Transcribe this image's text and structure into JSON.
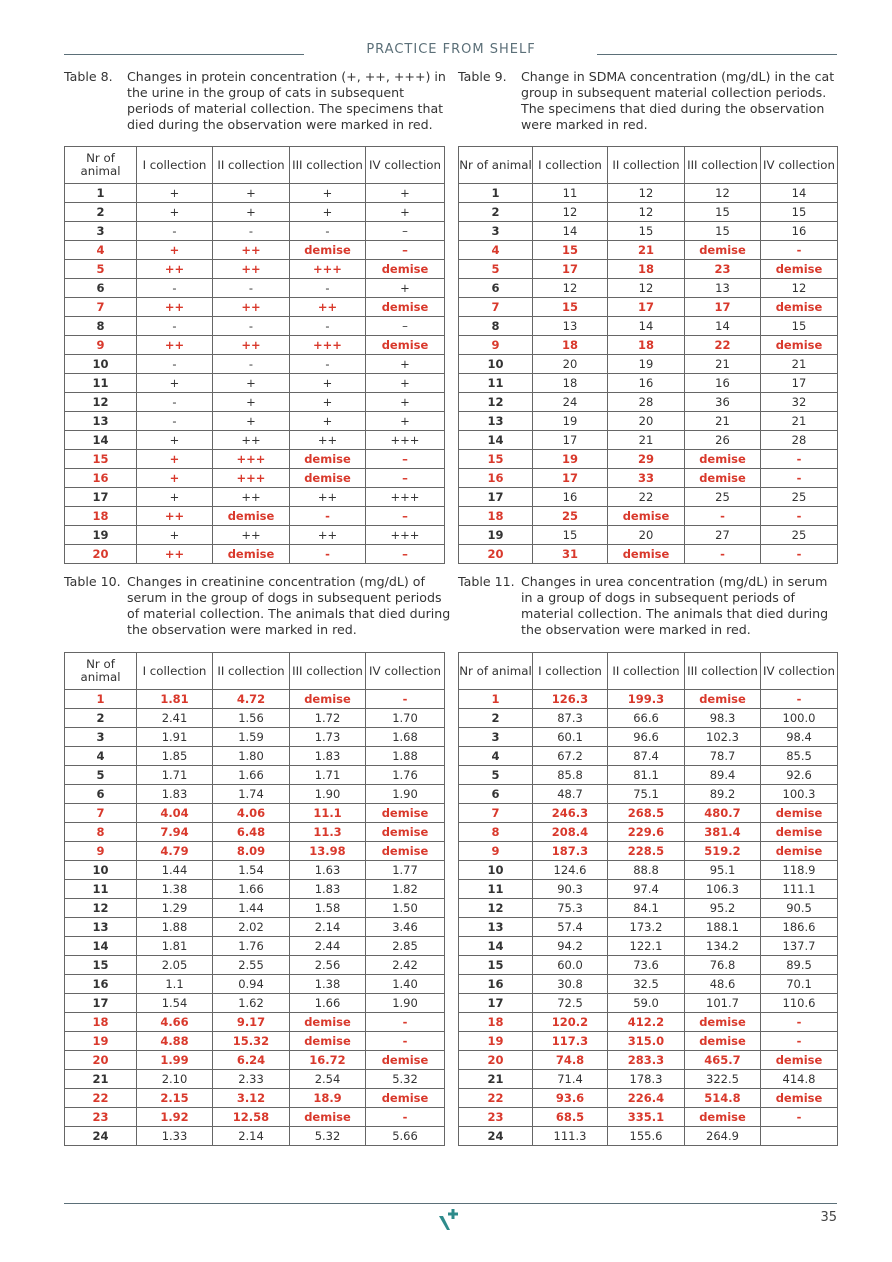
{
  "header": {
    "title": "PRACTICE FROM SHELF"
  },
  "tables": [
    {
      "label": "Table 8.",
      "caption": "Changes in protein concentration (+, ++, +++) in the urine in the group of cats in subsequent periods of material collection. The specimens that died during the observation were marked in red.",
      "columns": [
        "Nr of animal",
        "I collection",
        "II collection",
        "III collection",
        "IV collection"
      ],
      "rows": [
        {
          "cells": [
            "1",
            "+",
            "+",
            "+",
            "+"
          ]
        },
        {
          "cells": [
            "2",
            "+",
            "+",
            "+",
            "+"
          ]
        },
        {
          "cells": [
            "3",
            "-",
            "-",
            "-",
            "–"
          ]
        },
        {
          "cells": [
            "4",
            "+",
            "++",
            "demise",
            "–"
          ],
          "color": "#d9392c"
        },
        {
          "cells": [
            "5",
            "++",
            "++",
            "+++",
            "demise"
          ],
          "color": "#d9392c"
        },
        {
          "cells": [
            "6",
            "-",
            "-",
            "-",
            "+"
          ]
        },
        {
          "cells": [
            "7",
            "++",
            "++",
            "++",
            "demise"
          ],
          "color": "#d9392c"
        },
        {
          "cells": [
            "8",
            "-",
            "-",
            "-",
            "–"
          ]
        },
        {
          "cells": [
            "9",
            "++",
            "++",
            "+++",
            "demise"
          ],
          "color": "#d9392c"
        },
        {
          "cells": [
            "10",
            "-",
            "-",
            "-",
            "+"
          ]
        },
        {
          "cells": [
            "11",
            "+",
            "+",
            "+",
            "+"
          ]
        },
        {
          "cells": [
            "12",
            "-",
            "+",
            "+",
            "+"
          ]
        },
        {
          "cells": [
            "13",
            "-",
            "+",
            "+",
            "+"
          ]
        },
        {
          "cells": [
            "14",
            "+",
            "++",
            "++",
            "+++"
          ]
        },
        {
          "cells": [
            "15",
            "+",
            "+++",
            "demise",
            "–"
          ],
          "color": "#d9392c"
        },
        {
          "cells": [
            "16",
            "+",
            "+++",
            "demise",
            "–"
          ],
          "color": "#d9392c"
        },
        {
          "cells": [
            "17",
            "+",
            "++",
            "++",
            "+++"
          ]
        },
        {
          "cells": [
            "18",
            "++",
            "demise",
            "-",
            "–"
          ],
          "color": "#d9392c"
        },
        {
          "cells": [
            "19",
            "+",
            "++",
            "++",
            "+++"
          ]
        },
        {
          "cells": [
            "20",
            "++",
            "demise",
            "-",
            "–"
          ],
          "color": "#d9392c"
        }
      ]
    },
    {
      "label": "Table 9.",
      "caption": "Change in SDMA concentration (mg/dL) in the cat group in subsequent material collection periods. The specimens that died during the observation were marked in red.",
      "columns": [
        "Nr of animal",
        "I collection",
        "II collection",
        "III collection",
        "IV collection"
      ],
      "rows": [
        {
          "cells": [
            "1",
            "11",
            "12",
            "12",
            "14"
          ]
        },
        {
          "cells": [
            "2",
            "12",
            "12",
            "15",
            "15"
          ]
        },
        {
          "cells": [
            "3",
            "14",
            "15",
            "15",
            "16"
          ]
        },
        {
          "cells": [
            "4",
            "15",
            "21",
            "demise",
            "-"
          ],
          "color": "#d9392c"
        },
        {
          "cells": [
            "5",
            "17",
            "18",
            "23",
            "demise"
          ],
          "color": "#d9392c"
        },
        {
          "cells": [
            "6",
            "12",
            "12",
            "13",
            "12"
          ]
        },
        {
          "cells": [
            "7",
            "15",
            "17",
            "17",
            "demise"
          ],
          "color": "#d9392c"
        },
        {
          "cells": [
            "8",
            "13",
            "14",
            "14",
            "15"
          ]
        },
        {
          "cells": [
            "9",
            "18",
            "18",
            "22",
            "demise"
          ],
          "color": "#d9392c"
        },
        {
          "cells": [
            "10",
            "20",
            "19",
            "21",
            "21"
          ]
        },
        {
          "cells": [
            "11",
            "18",
            "16",
            "16",
            "17"
          ]
        },
        {
          "cells": [
            "12",
            "24",
            "28",
            "36",
            "32"
          ]
        },
        {
          "cells": [
            "13",
            "19",
            "20",
            "21",
            "21"
          ]
        },
        {
          "cells": [
            "14",
            "17",
            "21",
            "26",
            "28"
          ]
        },
        {
          "cells": [
            "15",
            "19",
            "29",
            "demise",
            "-"
          ],
          "color": "#d9392c"
        },
        {
          "cells": [
            "16",
            "17",
            "33",
            "demise",
            "-"
          ],
          "color": "#d9392c"
        },
        {
          "cells": [
            "17",
            "16",
            "22",
            "25",
            "25"
          ]
        },
        {
          "cells": [
            "18",
            "25",
            "demise",
            "-",
            "-"
          ],
          "color": "#d9392c"
        },
        {
          "cells": [
            "19",
            "15",
            "20",
            "27",
            "25"
          ]
        },
        {
          "cells": [
            "20",
            "31",
            "demise",
            "-",
            "-"
          ],
          "color": "#d9392c"
        }
      ]
    },
    {
      "label": "Table 10.",
      "caption": "Changes in creatinine concentration (mg/dL) of serum in the group of dogs in subsequent periods of material collection. The animals that died during the observation were marked in red.",
      "columns": [
        "Nr of animal",
        "I collection",
        "II collection",
        "III collection",
        "IV collection"
      ],
      "rows": [
        {
          "cells": [
            "1",
            "1.81",
            "4.72",
            "demise",
            "-"
          ],
          "color": "#d9392c"
        },
        {
          "cells": [
            "2",
            "2.41",
            "1.56",
            "1.72",
            "1.70"
          ]
        },
        {
          "cells": [
            "3",
            "1.91",
            "1.59",
            "1.73",
            "1.68"
          ]
        },
        {
          "cells": [
            "4",
            "1.85",
            "1.80",
            "1.83",
            "1.88"
          ]
        },
        {
          "cells": [
            "5",
            "1.71",
            "1.66",
            "1.71",
            "1.76"
          ]
        },
        {
          "cells": [
            "6",
            "1.83",
            "1.74",
            "1.90",
            "1.90"
          ]
        },
        {
          "cells": [
            "7",
            "4.04",
            "4.06",
            "11.1",
            "demise"
          ],
          "color": "#d9392c"
        },
        {
          "cells": [
            "8",
            "7.94",
            "6.48",
            "11.3",
            "demise"
          ],
          "color": "#d9392c"
        },
        {
          "cells": [
            "9",
            "4.79",
            "8.09",
            "13.98",
            "demise"
          ],
          "color": "#d9392c"
        },
        {
          "cells": [
            "10",
            "1.44",
            "1.54",
            "1.63",
            "1.77"
          ]
        },
        {
          "cells": [
            "11",
            "1.38",
            "1.66",
            "1.83",
            "1.82"
          ]
        },
        {
          "cells": [
            "12",
            "1.29",
            "1.44",
            "1.58",
            "1.50"
          ]
        },
        {
          "cells": [
            "13",
            "1.88",
            "2.02",
            "2.14",
            "3.46"
          ]
        },
        {
          "cells": [
            "14",
            "1.81",
            "1.76",
            "2.44",
            "2.85"
          ]
        },
        {
          "cells": [
            "15",
            "2.05",
            "2.55",
            "2.56",
            "2.42"
          ]
        },
        {
          "cells": [
            "16",
            "1.1",
            "0.94",
            "1.38",
            "1.40"
          ]
        },
        {
          "cells": [
            "17",
            "1.54",
            "1.62",
            "1.66",
            "1.90"
          ]
        },
        {
          "cells": [
            "18",
            "4.66",
            "9.17",
            "demise",
            "-"
          ],
          "color": "#d9392c"
        },
        {
          "cells": [
            "19",
            "4.88",
            "15.32",
            "demise",
            "-"
          ],
          "color": "#d9392c"
        },
        {
          "cells": [
            "20",
            "1.99",
            "6.24",
            "16.72",
            "demise"
          ],
          "color": "#d9392c"
        },
        {
          "cells": [
            "21",
            "2.10",
            "2.33",
            "2.54",
            "5.32"
          ]
        },
        {
          "cells": [
            "22",
            "2.15",
            "3.12",
            "18.9",
            "demise"
          ],
          "color": "#d9392c"
        },
        {
          "cells": [
            "23",
            "1.92",
            "12.58",
            "demise",
            "-"
          ],
          "color": "#d9392c"
        },
        {
          "cells": [
            "24",
            "1.33",
            "2.14",
            "5.32",
            "5.66"
          ]
        }
      ]
    },
    {
      "label": "Table 11.",
      "caption": "Changes in urea concentration (mg/dL) in serum in a group of dogs in subsequent periods of material collection. The animals that died during the observation were marked in red.",
      "columns": [
        "Nr of animal",
        "I collection",
        "II collection",
        "III collection",
        "IV collection"
      ],
      "rows": [
        {
          "cells": [
            "1",
            "126.3",
            "199.3",
            "demise",
            "-"
          ],
          "color": "#d9392c"
        },
        {
          "cells": [
            "2",
            "87.3",
            "66.6",
            "98.3",
            "100.0"
          ]
        },
        {
          "cells": [
            "3",
            "60.1",
            "96.6",
            "102.3",
            "98.4"
          ]
        },
        {
          "cells": [
            "4",
            "67.2",
            "87.4",
            "78.7",
            "85.5"
          ]
        },
        {
          "cells": [
            "5",
            "85.8",
            "81.1",
            "89.4",
            "92.6"
          ]
        },
        {
          "cells": [
            "6",
            "48.7",
            "75.1",
            "89.2",
            "100.3"
          ]
        },
        {
          "cells": [
            "7",
            "246.3",
            "268.5",
            "480.7",
            "demise"
          ],
          "color": "#d9392c"
        },
        {
          "cells": [
            "8",
            "208.4",
            "229.6",
            "381.4",
            "demise"
          ],
          "color": "#d9392c"
        },
        {
          "cells": [
            "9",
            "187.3",
            "228.5",
            "519.2",
            "demise"
          ],
          "color": "#d9392c"
        },
        {
          "cells": [
            "10",
            "124.6",
            "88.8",
            "95.1",
            "118.9"
          ]
        },
        {
          "cells": [
            "11",
            "90.3",
            "97.4",
            "106.3",
            "111.1"
          ]
        },
        {
          "cells": [
            "12",
            "75.3",
            "84.1",
            "95.2",
            "90.5"
          ]
        },
        {
          "cells": [
            "13",
            "57.4",
            "173.2",
            "188.1",
            "186.6"
          ]
        },
        {
          "cells": [
            "14",
            "94.2",
            "122.1",
            "134.2",
            "137.7"
          ]
        },
        {
          "cells": [
            "15",
            "60.0",
            "73.6",
            "76.8",
            "89.5"
          ]
        },
        {
          "cells": [
            "16",
            "30.8",
            "32.5",
            "48.6",
            "70.1"
          ]
        },
        {
          "cells": [
            "17",
            "72.5",
            "59.0",
            "101.7",
            "110.6"
          ]
        },
        {
          "cells": [
            "18",
            "120.2",
            "412.2",
            "demise",
            "-"
          ],
          "color": "#d9392c"
        },
        {
          "cells": [
            "19",
            "117.3",
            "315.0",
            "demise",
            "-"
          ],
          "color": "#d9392c"
        },
        {
          "cells": [
            "20",
            "74.8",
            "283.3",
            "465.7",
            "demise"
          ],
          "color": "#d9392c"
        },
        {
          "cells": [
            "21",
            "71.4",
            "178.3",
            "322.5",
            "414.8"
          ]
        },
        {
          "cells": [
            "22",
            "93.6",
            "226.4",
            "514.8",
            "demise"
          ],
          "color": "#d9392c"
        },
        {
          "cells": [
            "23",
            "68.5",
            "335.1",
            "demise",
            "-"
          ],
          "color": "#d9392c"
        },
        {
          "cells": [
            "24",
            "111.3",
            "155.6",
            "264.9",
            null
          ]
        }
      ]
    }
  ],
  "footer": {
    "page": "35"
  }
}
